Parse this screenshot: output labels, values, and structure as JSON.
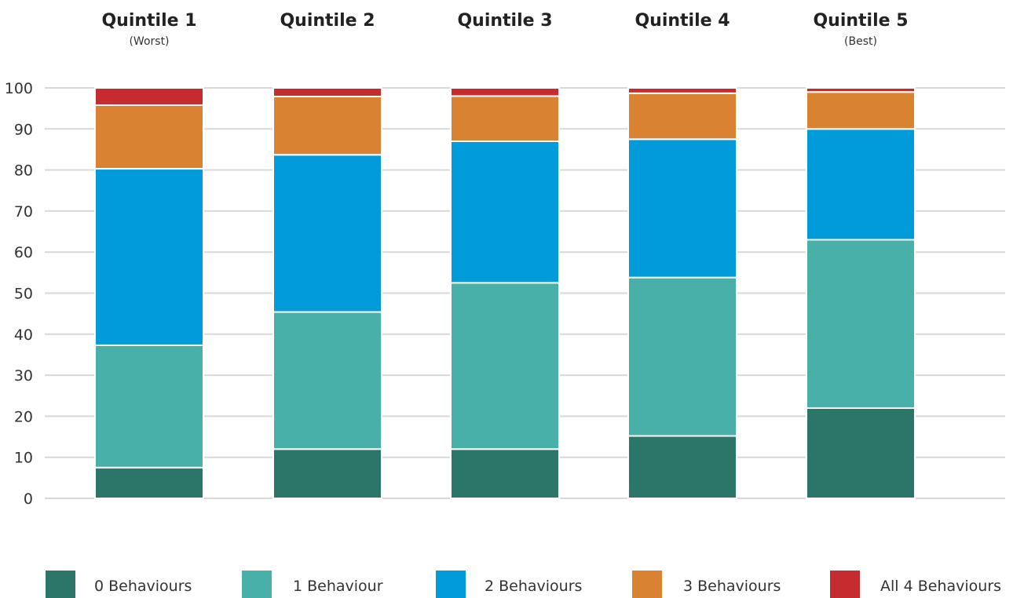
{
  "chart_data": {
    "type": "bar",
    "stacked": true,
    "categories": [
      "Quintile 1",
      "Quintile 2",
      "Quintile 3",
      "Quintile 4",
      "Quintile 5"
    ],
    "category_subtitles": [
      "(Worst)",
      "",
      "",
      "",
      "(Best)"
    ],
    "ylim": [
      0,
      100
    ],
    "yticks": [
      0,
      10,
      20,
      30,
      40,
      50,
      60,
      70,
      80,
      90,
      100
    ],
    "grid": true,
    "legend_position": "bottom",
    "series": [
      {
        "name": "0 Behaviours",
        "color": "#2b7668",
        "values": [
          7.5,
          12,
          12,
          15.2,
          22
        ]
      },
      {
        "name": "1 Behaviour",
        "color": "#48b0a9",
        "values": [
          29.8,
          33.4,
          40.5,
          38.6,
          41
        ]
      },
      {
        "name": "2 Behaviours",
        "color": "#029bd9",
        "values": [
          43,
          38.3,
          34.5,
          33.7,
          27
        ]
      },
      {
        "name": "3 Behaviours",
        "color": "#d98232",
        "values": [
          15.5,
          14.2,
          11,
          11.2,
          9
        ]
      },
      {
        "name": "All 4 Behaviours",
        "color": "#c52b2f",
        "values": [
          4.2,
          2.1,
          2,
          1.3,
          1
        ]
      }
    ]
  }
}
